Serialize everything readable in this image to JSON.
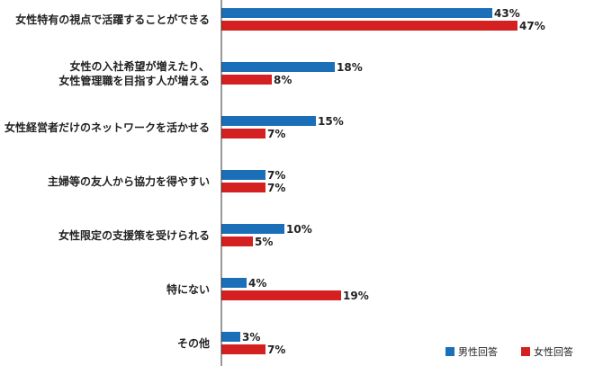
{
  "chart_data": {
    "type": "bar",
    "orientation": "horizontal",
    "categories": [
      [
        "女性特有の視点で活躍することができる"
      ],
      [
        "女性の入社希望が増えたり、",
        "女性管理職を目指す人が増える"
      ],
      [
        "女性経営者だけのネットワークを活かせる"
      ],
      [
        "主婦等の友人から協力を得やすい"
      ],
      [
        "女性限定の支援策を受けられる"
      ],
      [
        "特にない"
      ],
      [
        "その他"
      ]
    ],
    "series": [
      {
        "name": "男性回答",
        "color": "#1a6fb8",
        "values": [
          43,
          18,
          15,
          7,
          10,
          4,
          3
        ]
      },
      {
        "name": "女性回答",
        "color": "#d42020",
        "values": [
          47,
          8,
          7,
          7,
          5,
          19,
          7
        ]
      }
    ],
    "value_suffix": "%",
    "xlim": [
      0,
      50
    ],
    "grid": false,
    "legend": "bottom-right"
  }
}
